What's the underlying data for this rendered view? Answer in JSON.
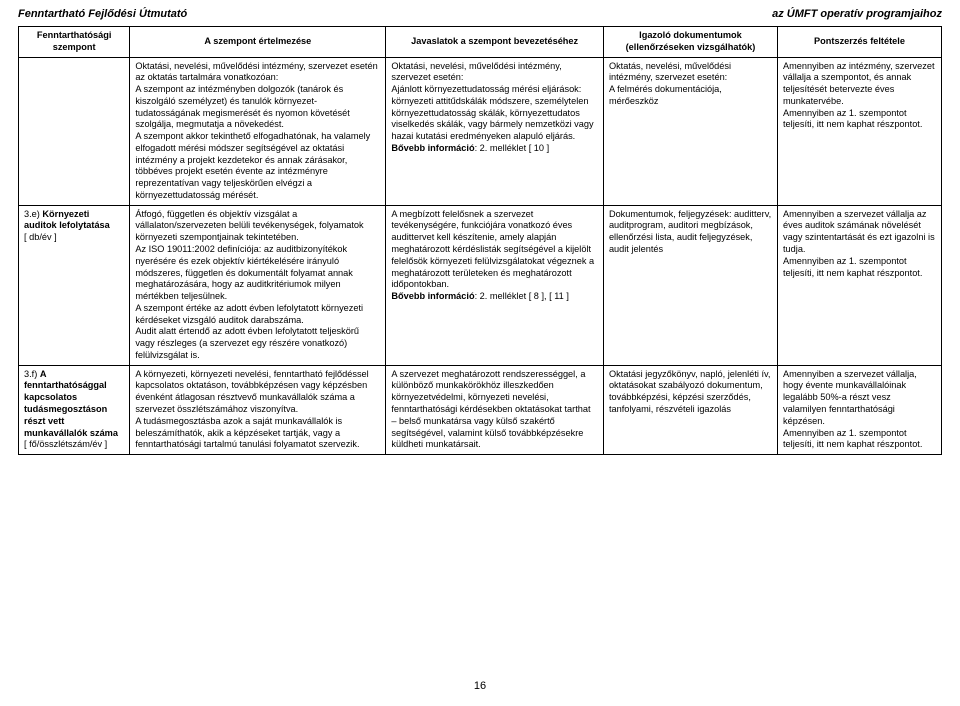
{
  "header": {
    "left": "Fenntartható Fejlődési Útmutató",
    "right": "az ÚMFT operatív programjaihoz"
  },
  "columns": {
    "c1": "Fenntarthatósági szempont",
    "c2": "A szempont értelmezése",
    "c3": "Javaslatok a szempont bevezetéséhez",
    "c4": "Igazoló dokumentumok (ellenőrzéseken vizsgálhatók)",
    "c5": "Pontszerzés feltétele"
  },
  "rows": [
    {
      "crit": "",
      "int": "Oktatási, nevelési, művelődési intézmény, szervezet esetén az oktatás tartalmára vonatkozóan:\nA szempont az intézményben dolgozók (tanárok és kiszolgáló személyzet) és tanulók környezet-tudatosságának megismerését és nyomon követését szolgálja, megmutatja a növekedést.\nA szempont akkor tekinthető elfogadhatónak, ha valamely elfogadott mérési módszer segítségével az oktatási intézmény a projekt kezdetekor és annak zárásakor, többéves projekt esetén évente az intézményre reprezentatívan vagy teljeskörűen elvégzi a környezettudatosság mérését.",
      "sug": "Oktatási, nevelési, művelődési intézmény, szervezet esetén:\nAjánlott környezettudatosság mérési eljárások: környezeti attitűdskálák módszere, személytelen környezettudatosság skálák, környezettudatos viselkedés skálák, vagy bármely nemzetközi vagy hazai kutatási eredményeken alapuló eljárás.\n",
      "sug_bold_tail": "Bővebb információ",
      "sug_tail_cont": ": 2. melléklet [ 10 ]",
      "doc": "Oktatás, nevelési, művelődési intézmény, szervezet esetén:\nA felmérés dokumentációja, mérőeszköz",
      "pts": "Amennyiben az intézmény, szervezet vállalja a szempontot, és annak teljesítését betervezte éves munkatervébe.\nAmennyiben az 1. szempontot teljesíti, itt nem kaphat részpontot."
    },
    {
      "crit_prefix": "3.e) ",
      "crit_bold": "Környezeti auditok lefolytatása",
      "crit_suffix": "\n[ db/év ]",
      "int": "Átfogó, független és objektív vizsgálat a vállalaton/szervezeten belüli tevékenységek, folyamatok környezeti szempontjainak tekintetében.\nAz ISO 19011:2002 definíciója: az auditbizonyítékok nyerésére és ezek objektív kiértékelésére irányuló módszeres, független és dokumentált folyamat annak meghatározására, hogy az auditkritériumok milyen mértékben teljesülnek.\nA szempont értéke az adott évben lefolytatott környezeti kérdéseket vizsgáló auditok darabszáma.\nAudit alatt értendő az adott évben lefolytatott teljeskörű vagy részleges (a szervezet egy részére vonatkozó) felülvizsgálat is.",
      "sug": "A megbízott felelősnek a szervezet tevékenységére, funkciójára vonatkozó éves audittervet kell készítenie, amely alapján meghatározott kérdéslisták segítségével a kijelölt felelősök környezeti felülvizsgálatokat végeznek a meghatározott területeken és meghatározott időpontokban.\n\n",
      "sug_bold_tail": "Bővebb információ",
      "sug_tail_cont": ": 2. melléklet [ 8 ], [ 11 ]",
      "doc": "Dokumentumok, feljegyzések: auditterv, auditprogram, auditori megbízások, ellenőrzési lista, audit feljegyzések, audit jelentés",
      "pts": "Amennyiben a szervezet vállalja az éves auditok számának növelését vagy szintentartását és ezt igazolni is tudja.\nAmennyiben az 1. szempontot teljesíti, itt nem kaphat részpontot."
    },
    {
      "crit_prefix": "3.f) ",
      "crit_bold": "A fenntarthatósággal kapcsolatos tudásmegosztáson részt vett munkavállalók száma",
      "crit_suffix": "\n[ fő/összlétszám/év ]",
      "int": "A környezeti, környezeti nevelési, fenntartható fejlődéssel kapcsolatos oktatáson, továbbképzésen vagy képzésben évenként átlagosan résztvevő munkavállalók száma a szervezet összlétszámához viszonyítva.\nA tudásmegosztásba azok a saját munkavállalók is beleszámíthatók, akik a képzéseket tartják, vagy a fenntarthatósági tartalmú tanulási folyamatot szervezik.",
      "sug": "A szervezet meghatározott rendszerességgel, a különböző munkakörökhöz illeszkedően környezetvédelmi, környezeti nevelési, fenntarthatósági kérdésekben oktatásokat tarthat – belső munkatársa vagy külső szakértő segítségével, valamint külső továbbképzésekre küldheti munkatársait.",
      "doc": "Oktatási jegyzőkönyv, napló, jelenléti ív, oktatásokat szabályozó dokumentum, továbbképzési, képzési szerződés, tanfolyami, részvételi igazolás",
      "pts": "Amennyiben a szervezet vállalja, hogy évente munkavállalóinak legalább 50%-a részt vesz valamilyen fenntarthatósági képzésen.\nAmennyiben az 1. szempontot teljesíti, itt nem kaphat részpontot."
    }
  ],
  "pageNum": "16"
}
